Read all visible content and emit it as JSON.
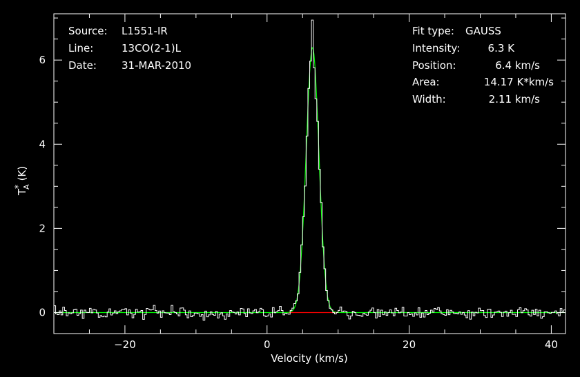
{
  "header": {
    "source_label": "Source:",
    "source_value": "L1551-IR",
    "line_label": "Line:",
    "line_value": "13CO(2-1)L",
    "date_label": "Date:",
    "date_value": "31-MAR-2010"
  },
  "fit": {
    "type_label": "Fit type:",
    "type_value": "GAUSS",
    "intensity_label": "Intensity:",
    "intensity_value": "6.3 K",
    "position_label": "Position:",
    "position_value": "6.4 km/s",
    "area_label": "Area:",
    "area_value": "14.17 K*km/s",
    "width_label": "Width:",
    "width_value": "2.11 km/s"
  },
  "colors": {
    "background": "#000000",
    "spectrum": "#ffffff",
    "fit": "#00ff00",
    "baseline": "#ff0000",
    "axes": "#ffffff"
  },
  "chart_data": {
    "type": "line",
    "xlabel": "Velocity (km/s)",
    "ylabel_main": "T",
    "ylabel_sub": "A",
    "ylabel_sup": "*",
    "ylabel_unit": "(K)",
    "xlim": [
      -30,
      42
    ],
    "ylim": [
      -0.5,
      7.1
    ],
    "x_ticks": [
      -20,
      0,
      20,
      40
    ],
    "y_ticks": [
      0,
      2,
      4,
      6
    ],
    "grid": false,
    "series": [
      {
        "role": "spectrum",
        "x_start": -30,
        "x_end": 42,
        "step": 0.25,
        "peak_x": 6.4,
        "peak_y": 6.95,
        "noise_rms": 0.12
      },
      {
        "role": "fit",
        "model": "gaussian",
        "amplitude": 6.3,
        "center": 6.4,
        "fwhm": 2.11
      },
      {
        "role": "baseline",
        "x": [
          3.0,
          10.0
        ],
        "y": [
          0,
          0
        ]
      }
    ]
  }
}
